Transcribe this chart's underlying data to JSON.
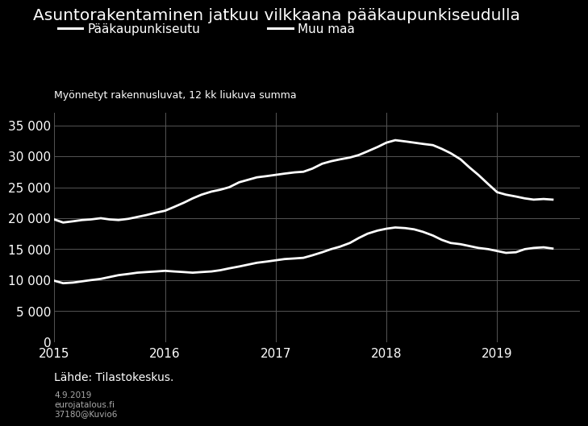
{
  "title": "Asuntorakentaminen jatkuu vilkkaana pääkaupunkiseudulla",
  "subtitle": "Myönnetyt rakennusluvat, 12 kk liukuva summa",
  "legend_labels": [
    "Pääkaupunkiseutu",
    "Muu maa"
  ],
  "source": "Lähde: Tilastokeskus.",
  "date_info": "4.9.2019\neurojatalous.fi\n37180@Kuvio6",
  "background_color": "#000000",
  "text_color": "#ffffff",
  "line_color": "#ffffff",
  "grid_color": "#555555",
  "ylim": [
    0,
    37000
  ],
  "yticks": [
    0,
    5000,
    10000,
    15000,
    20000,
    25000,
    30000,
    35000
  ],
  "xlim_start": 2015.0,
  "xlim_end": 2019.75,
  "pks_data": [
    [
      2015.0,
      19800
    ],
    [
      2015.08,
      19300
    ],
    [
      2015.17,
      19500
    ],
    [
      2015.25,
      19700
    ],
    [
      2015.33,
      19800
    ],
    [
      2015.42,
      20000
    ],
    [
      2015.5,
      19800
    ],
    [
      2015.58,
      19700
    ],
    [
      2015.67,
      19900
    ],
    [
      2015.75,
      20200
    ],
    [
      2015.83,
      20500
    ],
    [
      2015.92,
      20900
    ],
    [
      2016.0,
      21200
    ],
    [
      2016.08,
      21800
    ],
    [
      2016.17,
      22500
    ],
    [
      2016.25,
      23200
    ],
    [
      2016.33,
      23800
    ],
    [
      2016.42,
      24300
    ],
    [
      2016.5,
      24600
    ],
    [
      2016.58,
      25000
    ],
    [
      2016.67,
      25800
    ],
    [
      2016.75,
      26200
    ],
    [
      2016.83,
      26600
    ],
    [
      2016.92,
      26800
    ],
    [
      2017.0,
      27000
    ],
    [
      2017.08,
      27200
    ],
    [
      2017.17,
      27400
    ],
    [
      2017.25,
      27500
    ],
    [
      2017.33,
      28000
    ],
    [
      2017.42,
      28800
    ],
    [
      2017.5,
      29200
    ],
    [
      2017.58,
      29500
    ],
    [
      2017.67,
      29800
    ],
    [
      2017.75,
      30200
    ],
    [
      2017.83,
      30800
    ],
    [
      2017.92,
      31500
    ],
    [
      2018.0,
      32200
    ],
    [
      2018.08,
      32600
    ],
    [
      2018.17,
      32400
    ],
    [
      2018.25,
      32200
    ],
    [
      2018.33,
      32000
    ],
    [
      2018.42,
      31800
    ],
    [
      2018.5,
      31200
    ],
    [
      2018.58,
      30500
    ],
    [
      2018.67,
      29500
    ],
    [
      2018.75,
      28200
    ],
    [
      2018.83,
      27000
    ],
    [
      2018.92,
      25500
    ],
    [
      2019.0,
      24200
    ],
    [
      2019.08,
      23800
    ],
    [
      2019.17,
      23500
    ],
    [
      2019.25,
      23200
    ],
    [
      2019.33,
      23000
    ],
    [
      2019.42,
      23100
    ],
    [
      2019.5,
      23000
    ]
  ],
  "muu_data": [
    [
      2015.0,
      9900
    ],
    [
      2015.08,
      9500
    ],
    [
      2015.17,
      9600
    ],
    [
      2015.25,
      9800
    ],
    [
      2015.33,
      10000
    ],
    [
      2015.42,
      10200
    ],
    [
      2015.5,
      10500
    ],
    [
      2015.58,
      10800
    ],
    [
      2015.67,
      11000
    ],
    [
      2015.75,
      11200
    ],
    [
      2015.83,
      11300
    ],
    [
      2015.92,
      11400
    ],
    [
      2016.0,
      11500
    ],
    [
      2016.08,
      11400
    ],
    [
      2016.17,
      11300
    ],
    [
      2016.25,
      11200
    ],
    [
      2016.33,
      11300
    ],
    [
      2016.42,
      11400
    ],
    [
      2016.5,
      11600
    ],
    [
      2016.58,
      11900
    ],
    [
      2016.67,
      12200
    ],
    [
      2016.75,
      12500
    ],
    [
      2016.83,
      12800
    ],
    [
      2016.92,
      13000
    ],
    [
      2017.0,
      13200
    ],
    [
      2017.08,
      13400
    ],
    [
      2017.17,
      13500
    ],
    [
      2017.25,
      13600
    ],
    [
      2017.33,
      14000
    ],
    [
      2017.42,
      14500
    ],
    [
      2017.5,
      15000
    ],
    [
      2017.58,
      15400
    ],
    [
      2017.67,
      16000
    ],
    [
      2017.75,
      16800
    ],
    [
      2017.83,
      17500
    ],
    [
      2017.92,
      18000
    ],
    [
      2018.0,
      18300
    ],
    [
      2018.08,
      18500
    ],
    [
      2018.17,
      18400
    ],
    [
      2018.25,
      18200
    ],
    [
      2018.33,
      17800
    ],
    [
      2018.42,
      17200
    ],
    [
      2018.5,
      16500
    ],
    [
      2018.58,
      16000
    ],
    [
      2018.67,
      15800
    ],
    [
      2018.75,
      15500
    ],
    [
      2018.83,
      15200
    ],
    [
      2018.92,
      15000
    ],
    [
      2019.0,
      14700
    ],
    [
      2019.08,
      14400
    ],
    [
      2019.17,
      14500
    ],
    [
      2019.25,
      15000
    ],
    [
      2019.33,
      15200
    ],
    [
      2019.42,
      15300
    ],
    [
      2019.5,
      15100
    ]
  ]
}
